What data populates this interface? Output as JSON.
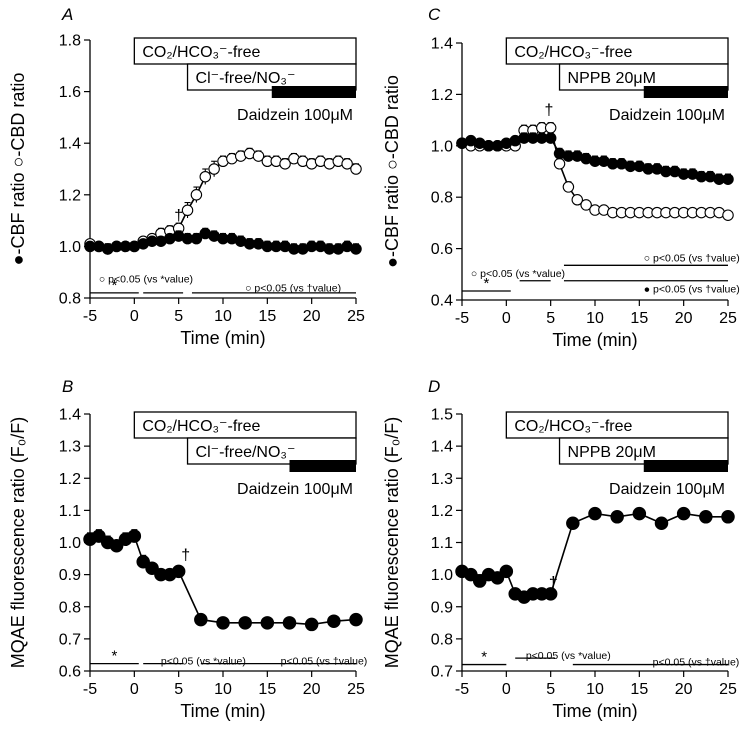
{
  "chart_data": [
    {
      "type": "line",
      "panel": "A",
      "xlabel": "Time (min)",
      "ylabel": "●-CBF ratio ○-CBD ratio",
      "xlim": [
        -5,
        25
      ],
      "ylim": [
        0.8,
        1.8
      ],
      "xticks": [
        -5,
        0,
        5,
        10,
        15,
        20,
        25
      ],
      "yticks": [
        0.8,
        1.0,
        1.2,
        1.4,
        1.6,
        1.8
      ],
      "ytick_labels": [
        "0.8",
        "1.0",
        "1.2",
        "1.4",
        "1.6",
        "1.8"
      ],
      "treatments": [
        {
          "label": "CO₂/HCO₃⁻-free",
          "start": 0,
          "end": 25,
          "style": "box"
        },
        {
          "label": "Cl⁻-free/NO₃⁻",
          "start": 6,
          "end": 25,
          "style": "box"
        },
        {
          "label": "Daidzein 100μM",
          "start": 15.5,
          "end": 25,
          "style": "bar"
        }
      ],
      "significance": [
        {
          "start": -5,
          "end": 0.5,
          "text": "*",
          "y": 0.82
        },
        {
          "start": 1,
          "end": 5.5,
          "text": "",
          "y": 0.82
        },
        {
          "start": 6.5,
          "end": 25,
          "text": "",
          "y": 0.82
        }
      ],
      "sig_notes": [
        {
          "text": "○ p<0.05 (vs *value)",
          "x": -4,
          "y": 0.875
        },
        {
          "text": "○ p<0.05 (vs †value)",
          "x": 12.5,
          "y": 0.84
        }
      ],
      "dagger": {
        "x": 5,
        "y": 1.1
      },
      "series": [
        {
          "name": "CBF",
          "marker": "filled",
          "x": [
            -5,
            -4,
            -3,
            -2,
            -1,
            0,
            1,
            2,
            3,
            4,
            5,
            6,
            7,
            8,
            9,
            10,
            11,
            12,
            13,
            14,
            15,
            16,
            17,
            18,
            19,
            20,
            21,
            22,
            23,
            24,
            25
          ],
          "y": [
            1.0,
            1.0,
            0.99,
            1.0,
            1.0,
            1.0,
            1.01,
            1.02,
            1.02,
            1.03,
            1.04,
            1.03,
            1.03,
            1.05,
            1.04,
            1.03,
            1.03,
            1.02,
            1.01,
            1.01,
            1.0,
            1.0,
            1.0,
            0.99,
            0.99,
            1.0,
            1.0,
            0.99,
            0.99,
            1.0,
            0.99
          ],
          "err": [
            0.01,
            0.01,
            0.02,
            0.01,
            0.01,
            0.01,
            0.01,
            0.01,
            0.01,
            0.01,
            0.02,
            0.02,
            0.02,
            0.02,
            0.02,
            0.02,
            0.02,
            0.02,
            0.02,
            0.02,
            0.02,
            0.02,
            0.02,
            0.02,
            0.02,
            0.02,
            0.02,
            0.02,
            0.02,
            0.02,
            0.02
          ]
        },
        {
          "name": "CBD",
          "marker": "open",
          "x": [
            -5,
            -4,
            -3,
            -2,
            -1,
            0,
            1,
            2,
            3,
            4,
            5,
            6,
            7,
            8,
            9,
            10,
            11,
            12,
            13,
            14,
            15,
            16,
            17,
            18,
            19,
            20,
            21,
            22,
            23,
            24,
            25
          ],
          "y": [
            1.01,
            1.0,
            0.99,
            1.0,
            1.0,
            1.0,
            1.02,
            1.03,
            1.05,
            1.06,
            1.07,
            1.14,
            1.2,
            1.27,
            1.3,
            1.33,
            1.34,
            1.35,
            1.36,
            1.35,
            1.33,
            1.33,
            1.32,
            1.34,
            1.33,
            1.32,
            1.33,
            1.32,
            1.33,
            1.32,
            1.3
          ],
          "err": [
            0.01,
            0.01,
            0.02,
            0.01,
            0.01,
            0.01,
            0.01,
            0.01,
            0.02,
            0.02,
            0.02,
            0.03,
            0.03,
            0.03,
            0.03,
            0.02,
            0.02,
            0.02,
            0.02,
            0.02,
            0.02,
            0.02,
            0.02,
            0.02,
            0.02,
            0.02,
            0.02,
            0.02,
            0.02,
            0.02,
            0.02
          ]
        }
      ]
    },
    {
      "type": "line",
      "panel": "C",
      "xlabel": "Time (min)",
      "ylabel": "●-CBF ratio ○-CBD ratio",
      "xlim": [
        -5,
        25
      ],
      "ylim": [
        0.4,
        1.4
      ],
      "xticks": [
        -5,
        0,
        5,
        10,
        15,
        20,
        25
      ],
      "yticks": [
        0.4,
        0.6,
        0.8,
        1.0,
        1.2,
        1.4
      ],
      "ytick_labels": [
        "0.4",
        "0.6",
        "0.8",
        "1.0",
        "1.2",
        "1.4"
      ],
      "treatments": [
        {
          "label": "CO₂/HCO₃⁻-free",
          "start": 0,
          "end": 25,
          "style": "box"
        },
        {
          "label": "NPPB 20μM",
          "start": 6,
          "end": 25,
          "style": "box"
        },
        {
          "label": "Daidzein 100μM",
          "start": 15.5,
          "end": 25,
          "style": "bar"
        }
      ],
      "significance": [
        {
          "start": -5,
          "end": 0.5,
          "text": "*",
          "y": 0.435
        },
        {
          "start": 1.5,
          "end": 5,
          "text": "",
          "y": 0.475
        },
        {
          "start": 6.5,
          "end": 25,
          "text": "",
          "y": 0.535
        },
        {
          "start": 6.5,
          "end": 25,
          "text": "",
          "y": 0.475
        }
      ],
      "sig_notes": [
        {
          "text": "○ p<0.05 (vs *value)",
          "x": -4,
          "y": 0.505
        },
        {
          "text": "○ p<0.05 (vs †value)",
          "x": 15.5,
          "y": 0.565
        },
        {
          "text": "● p<0.05 (vs †value)",
          "x": 15.5,
          "y": 0.445
        }
      ],
      "dagger": {
        "x": 4.8,
        "y": 1.12
      },
      "series": [
        {
          "name": "CBF",
          "marker": "filled",
          "x": [
            -5,
            -4,
            -3,
            -2,
            -1,
            0,
            1,
            2,
            3,
            4,
            5,
            6,
            7,
            8,
            9,
            10,
            11,
            12,
            13,
            14,
            15,
            16,
            17,
            18,
            19,
            20,
            21,
            22,
            23,
            24,
            25
          ],
          "y": [
            1.01,
            1.02,
            1.01,
            1.0,
            1.0,
            1.01,
            1.02,
            1.03,
            1.03,
            1.03,
            1.03,
            0.97,
            0.96,
            0.96,
            0.95,
            0.94,
            0.94,
            0.93,
            0.93,
            0.92,
            0.92,
            0.91,
            0.91,
            0.9,
            0.9,
            0.89,
            0.89,
            0.88,
            0.88,
            0.87,
            0.87
          ],
          "err": [
            0.01,
            0.01,
            0.01,
            0.01,
            0.01,
            0.01,
            0.01,
            0.02,
            0.02,
            0.02,
            0.02,
            0.02,
            0.02,
            0.02,
            0.02,
            0.02,
            0.02,
            0.02,
            0.02,
            0.02,
            0.02,
            0.02,
            0.02,
            0.02,
            0.02,
            0.02,
            0.02,
            0.02,
            0.02,
            0.02,
            0.02
          ]
        },
        {
          "name": "CBD",
          "marker": "open",
          "x": [
            -5,
            -4,
            -3,
            -2,
            -1,
            0,
            1,
            2,
            3,
            4,
            5,
            6,
            7,
            8,
            9,
            10,
            11,
            12,
            13,
            14,
            15,
            16,
            17,
            18,
            19,
            20,
            21,
            22,
            23,
            24,
            25
          ],
          "y": [
            1.01,
            1.0,
            1.0,
            1.0,
            1.0,
            1.0,
            1.0,
            1.06,
            1.06,
            1.07,
            1.07,
            0.93,
            0.84,
            0.79,
            0.77,
            0.75,
            0.75,
            0.74,
            0.74,
            0.74,
            0.74,
            0.74,
            0.74,
            0.74,
            0.74,
            0.74,
            0.74,
            0.74,
            0.74,
            0.74,
            0.73
          ],
          "err": [
            0.01,
            0.01,
            0.01,
            0.01,
            0.01,
            0.01,
            0.01,
            0.02,
            0.02,
            0.02,
            0.02,
            0.02,
            0.02,
            0.01,
            0.01,
            0.01,
            0.01,
            0.01,
            0.01,
            0.01,
            0.01,
            0.01,
            0.01,
            0.01,
            0.01,
            0.01,
            0.01,
            0.01,
            0.01,
            0.01,
            0.01
          ]
        }
      ]
    },
    {
      "type": "line",
      "panel": "B",
      "xlabel": "Time (min)",
      "ylabel": "MQAE fluorescence ratio (F₀/F)",
      "xlim": [
        -5,
        25
      ],
      "ylim": [
        0.6,
        1.4
      ],
      "xticks": [
        -5,
        0,
        5,
        10,
        15,
        20,
        25
      ],
      "yticks": [
        0.6,
        0.7,
        0.8,
        0.9,
        1.0,
        1.1,
        1.2,
        1.3,
        1.4
      ],
      "ytick_labels": [
        "0.6",
        "0.7",
        "0.8",
        "0.9",
        "1.0",
        "1.1",
        "1.2",
        "1.3",
        "1.4"
      ],
      "treatments": [
        {
          "label": "CO₂/HCO₃⁻-free",
          "start": 0,
          "end": 25,
          "style": "box"
        },
        {
          "label": "Cl⁻-free/NO₃⁻",
          "start": 6,
          "end": 25,
          "style": "box"
        },
        {
          "label": "Daidzein 100μM",
          "start": 17.5,
          "end": 25,
          "style": "bar"
        }
      ],
      "significance": [
        {
          "start": -5,
          "end": 0.5,
          "text": "*",
          "y": 0.623
        },
        {
          "start": 1,
          "end": 5.5,
          "text": "",
          "y": 0.623
        },
        {
          "start": 7.5,
          "end": 25,
          "text": "",
          "y": 0.623
        }
      ],
      "sig_notes": [
        {
          "text": "p<0.05 (vs *value)",
          "x": 3,
          "y": 0.633
        },
        {
          "text": "p<0.05 (vs †value)",
          "x": 16.5,
          "y": 0.633
        }
      ],
      "dagger": {
        "x": 5.8,
        "y": 0.945
      },
      "series": [
        {
          "name": "MQAE",
          "marker": "filled",
          "x": [
            -5,
            -4,
            -3,
            -2,
            -1,
            0,
            1,
            2,
            3,
            4,
            5,
            7.5,
            10,
            12.5,
            15,
            17.5,
            20,
            22.5,
            25
          ],
          "y": [
            1.01,
            1.02,
            1.0,
            0.99,
            1.01,
            1.02,
            0.94,
            0.92,
            0.9,
            0.9,
            0.91,
            0.76,
            0.75,
            0.75,
            0.75,
            0.75,
            0.745,
            0.755,
            0.76
          ],
          "err": [
            0.02,
            0.02,
            0.02,
            0.01,
            0.02,
            0.02,
            0.02,
            0.01,
            0.01,
            0.01,
            0.01,
            0.01,
            0.01,
            0.01,
            0.01,
            0.01,
            0.01,
            0.01,
            0.01
          ]
        }
      ]
    },
    {
      "type": "line",
      "panel": "D",
      "xlabel": "Time (min)",
      "ylabel": "MQAE fluorescence ratio (F₀/F)",
      "xlim": [
        -5,
        25
      ],
      "ylim": [
        0.7,
        1.5
      ],
      "xticks": [
        -5,
        0,
        5,
        10,
        15,
        20,
        25
      ],
      "yticks": [
        0.7,
        0.8,
        0.9,
        1.0,
        1.1,
        1.2,
        1.3,
        1.4,
        1.5
      ],
      "ytick_labels": [
        "0.7",
        "0.8",
        "0.9",
        "1.0",
        "1.1",
        "1.2",
        "1.3",
        "1.4",
        "1.5"
      ],
      "treatments": [
        {
          "label": "CO₂/HCO₃⁻-free",
          "start": 0,
          "end": 25,
          "style": "box"
        },
        {
          "label": "NPPB 20μM",
          "start": 6,
          "end": 25,
          "style": "box"
        },
        {
          "label": "Daidzein 100μM",
          "start": 15.5,
          "end": 25,
          "style": "bar"
        }
      ],
      "significance": [
        {
          "start": -5,
          "end": 0,
          "text": "*",
          "y": 0.72
        },
        {
          "start": 1,
          "end": 5.5,
          "text": "",
          "y": 0.74
        },
        {
          "start": 7.5,
          "end": 25,
          "text": "",
          "y": 0.72
        }
      ],
      "sig_notes": [
        {
          "text": "p<0.05 (vs *value)",
          "x": 2.2,
          "y": 0.75
        },
        {
          "text": "p<0.05 (vs †value)",
          "x": 16.5,
          "y": 0.73
        }
      ],
      "dagger": {
        "x": 5.3,
        "y": 0.96
      },
      "series": [
        {
          "name": "MQAE",
          "marker": "filled",
          "x": [
            -5,
            -4,
            -3,
            -2,
            -1,
            0,
            1,
            2,
            3,
            4,
            5,
            7.5,
            10,
            12.5,
            15,
            17.5,
            20,
            22.5,
            25
          ],
          "y": [
            1.01,
            1.0,
            0.98,
            1.0,
            0.99,
            1.01,
            0.94,
            0.93,
            0.94,
            0.94,
            0.94,
            1.16,
            1.19,
            1.18,
            1.19,
            1.16,
            1.19,
            1.18,
            1.18
          ],
          "err": [
            0.01,
            0.01,
            0.02,
            0.01,
            0.01,
            0.01,
            0.01,
            0.01,
            0.01,
            0.01,
            0.01,
            0.01,
            0.01,
            0.01,
            0.01,
            0.01,
            0.01,
            0.01,
            0.01
          ]
        }
      ]
    }
  ]
}
